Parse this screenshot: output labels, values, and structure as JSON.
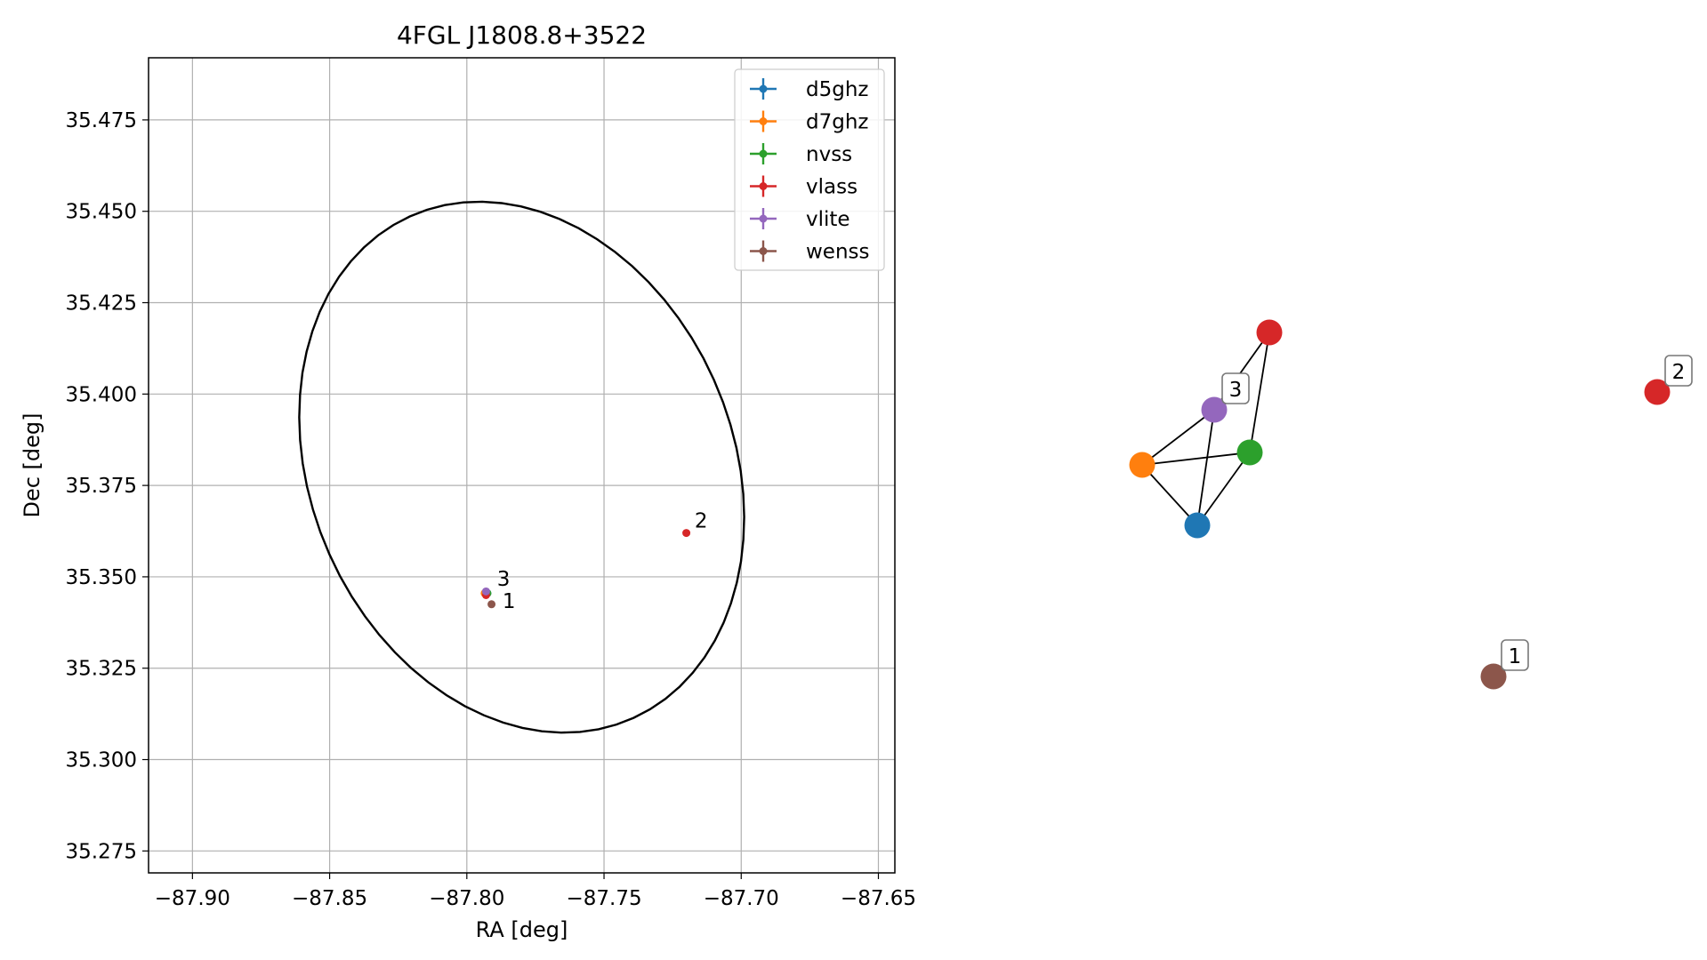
{
  "chart_data": [
    {
      "type": "scatter",
      "title": "4FGL J1808.8+3522",
      "xlabel": "RA [deg]",
      "ylabel": "Dec [deg]",
      "xlim": [
        -87.916,
        -87.644
      ],
      "ylim": [
        35.269,
        35.492
      ],
      "xticks": [
        -87.9,
        -87.85,
        -87.8,
        -87.75,
        -87.7,
        -87.65
      ],
      "xtick_labels": [
        "−87.90",
        "−87.85",
        "−87.80",
        "−87.75",
        "−87.70",
        "−87.65"
      ],
      "yticks": [
        35.275,
        35.3,
        35.325,
        35.35,
        35.375,
        35.4,
        35.425,
        35.45,
        35.475
      ],
      "ytick_labels": [
        "35.275",
        "35.300",
        "35.325",
        "35.350",
        "35.375",
        "35.400",
        "35.425",
        "35.450",
        "35.475"
      ],
      "grid": true,
      "legend_placement": "upper-right",
      "series": [
        {
          "name": "d5ghz",
          "color": "#1f77b4",
          "points": [
            {
              "x": -87.7925,
              "y": 35.3455
            }
          ]
        },
        {
          "name": "d7ghz",
          "color": "#ff7f0e",
          "points": [
            {
              "x": -87.7935,
              "y": 35.3455
            }
          ]
        },
        {
          "name": "nvss",
          "color": "#2ca02c",
          "points": [
            {
              "x": -87.7925,
              "y": 35.3455
            }
          ]
        },
        {
          "name": "vlass",
          "color": "#d62728",
          "points": [
            {
              "x": -87.793,
              "y": 35.345
            },
            {
              "x": -87.72,
              "y": 35.362
            }
          ]
        },
        {
          "name": "vlite",
          "color": "#9467bd",
          "points": [
            {
              "x": -87.793,
              "y": 35.346
            }
          ]
        },
        {
          "name": "wenss",
          "color": "#8c564b",
          "points": [
            {
              "x": -87.791,
              "y": 35.3425
            }
          ]
        }
      ],
      "ellipse": {
        "center": {
          "x": -87.78,
          "y": 35.38
        },
        "ra_radius": 0.085,
        "dec_radius": 0.068,
        "angle_deg": -30,
        "color": "#000000"
      },
      "annotations": [
        {
          "text": "1",
          "x": -87.787,
          "y": 35.3415
        },
        {
          "text": "2",
          "x": -87.717,
          "y": 35.3635
        },
        {
          "text": "3",
          "x": -87.789,
          "y": 35.3475
        }
      ]
    },
    {
      "type": "network",
      "nodes": [
        {
          "id": "d5ghz",
          "color": "#1f77b4"
        },
        {
          "id": "d7ghz",
          "color": "#ff7f0e"
        },
        {
          "id": "nvss",
          "color": "#2ca02c"
        },
        {
          "id": "vlass-a",
          "color": "#d62728"
        },
        {
          "id": "vlite",
          "color": "#9467bd",
          "label": "3"
        },
        {
          "id": "vlass-b",
          "color": "#d62728",
          "label": "2"
        },
        {
          "id": "wenss",
          "color": "#8c564b",
          "label": "1"
        }
      ],
      "edges": [
        [
          "d5ghz",
          "d7ghz"
        ],
        [
          "d5ghz",
          "nvss"
        ],
        [
          "d5ghz",
          "vlite"
        ],
        [
          "d7ghz",
          "vlite"
        ],
        [
          "d7ghz",
          "nvss"
        ],
        [
          "vlite",
          "vlass-a"
        ],
        [
          "vlass-a",
          "nvss"
        ]
      ]
    }
  ]
}
